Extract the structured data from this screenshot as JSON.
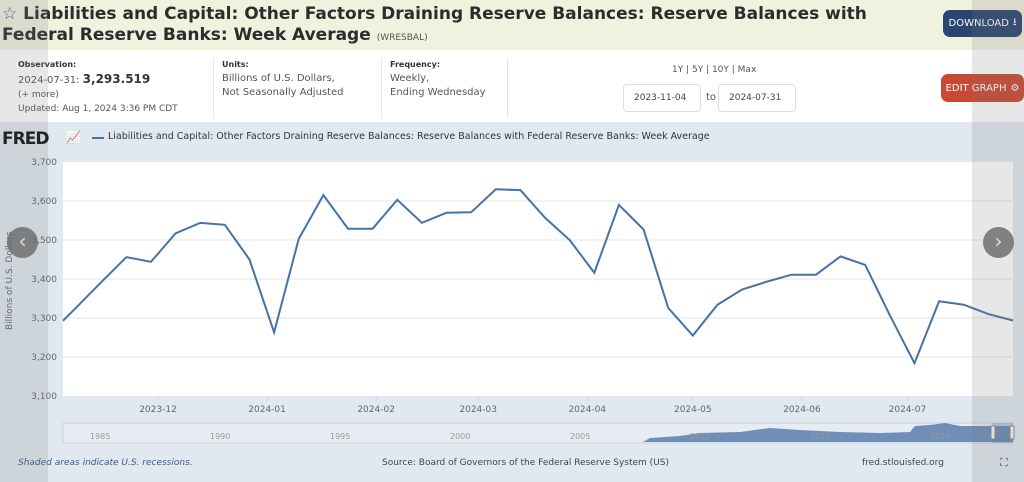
{
  "header": {
    "title": "Liabilities and Capital: Other Factors Draining Reserve Balances: Reserve Balances with Federal Reserve Banks: Week Average",
    "series_id": "(WRESBAL)",
    "star_icon": "star-outline-icon",
    "download_label": "DOWNLOAD",
    "edit_graph_label": "EDIT GRAPH"
  },
  "meta": {
    "observation_label": "Observation:",
    "observation_date": "2024-07-31:",
    "observation_value": "3,293.519",
    "more": "(+ more)",
    "updated": "Updated: Aug 1, 2024 3:36 PM CDT",
    "units_label": "Units:",
    "units_line1": "Billions of U.S. Dollars,",
    "units_line2": "Not Seasonally Adjusted",
    "frequency_label": "Frequency:",
    "frequency_line1": "Weekly,",
    "frequency_line2": "Ending Wednesday"
  },
  "range": {
    "presets": "1Y | 5Y | 10Y | Max",
    "start": "2023-11-04",
    "to": "to",
    "end": "2024-07-31"
  },
  "chart_data": {
    "type": "line",
    "logo": "FRED",
    "legend": "Liabilities and Capital: Other Factors Draining Reserve Balances: Reserve Balances with Federal Reserve Banks: Week Average",
    "ylabel": "Billions of U.S. Dollars",
    "ylim": [
      3100,
      3700
    ],
    "yticks": [
      "3,100",
      "3,200",
      "3,300",
      "3,400",
      "3,500",
      "3,600",
      "3,700"
    ],
    "xlim": [
      "2023-11-04",
      "2024-07-31"
    ],
    "xticks": [
      "2023-12",
      "2024-01",
      "2024-02",
      "2024-03",
      "2024-04",
      "2024-05",
      "2024-06",
      "2024-07"
    ],
    "grid": true,
    "color": "#4572a7",
    "series": [
      {
        "name": "Liabilities and Capital: Other Factors Draining Reserve Balances: Reserve Balances with Federal Reserve Banks: Week Average",
        "x": [
          "2023-11-01",
          "2023-11-08",
          "2023-11-15",
          "2023-11-22",
          "2023-11-29",
          "2023-12-06",
          "2023-12-13",
          "2023-12-20",
          "2023-12-27",
          "2024-01-03",
          "2024-01-10",
          "2024-01-17",
          "2024-01-24",
          "2024-01-31",
          "2024-02-07",
          "2024-02-14",
          "2024-02-21",
          "2024-02-28",
          "2024-03-06",
          "2024-03-13",
          "2024-03-20",
          "2024-03-27",
          "2024-04-03",
          "2024-04-10",
          "2024-04-17",
          "2024-04-24",
          "2024-05-01",
          "2024-05-08",
          "2024-05-15",
          "2024-05-22",
          "2024-05-29",
          "2024-06-05",
          "2024-06-12",
          "2024-06-19",
          "2024-06-26",
          "2024-07-03",
          "2024-07-10",
          "2024-07-17",
          "2024-07-24",
          "2024-07-31"
        ],
        "values": [
          3266,
          3329,
          3393,
          3456,
          3444,
          3517,
          3544,
          3539,
          3450,
          3263,
          3503,
          3615,
          3529,
          3529,
          3603,
          3544,
          3570,
          3571,
          3630,
          3628,
          3557,
          3500,
          3416,
          3590,
          3527,
          3326,
          3255,
          3334,
          3373,
          3393,
          3411,
          3411,
          3458,
          3436,
          3307,
          3184,
          3343,
          3334,
          3310,
          3293.519
        ]
      }
    ],
    "navigator_years": [
      "1985",
      "1990",
      "1995",
      "2000",
      "2005",
      "2010",
      "2015",
      "2020"
    ],
    "recession_note": "Shaded areas indicate U.S. recessions.",
    "source": "Source: Board of Governors of the Federal Reserve System (US)",
    "site": "fred.stlouisfed.org"
  }
}
